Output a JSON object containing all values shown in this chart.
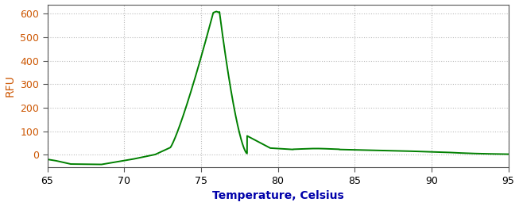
{
  "xlabel": "Temperature, Celsius",
  "ylabel": "RFU",
  "xlim": [
    65,
    95
  ],
  "ylim": [
    -55,
    640
  ],
  "xticks": [
    65,
    70,
    75,
    80,
    85,
    90,
    95
  ],
  "yticks": [
    0,
    100,
    200,
    300,
    400,
    500,
    600
  ],
  "line_color": "#008000",
  "line_width": 1.4,
  "background_color": "#ffffff",
  "ylabel_color": "#cc5500",
  "xlabel_color": "#0000aa",
  "tick_label_color_y": "#cc5500",
  "tick_label_color_x": "#000000",
  "grid_color": "#bbbbbb",
  "figsize": [
    6.53,
    2.6
  ],
  "dpi": 100
}
